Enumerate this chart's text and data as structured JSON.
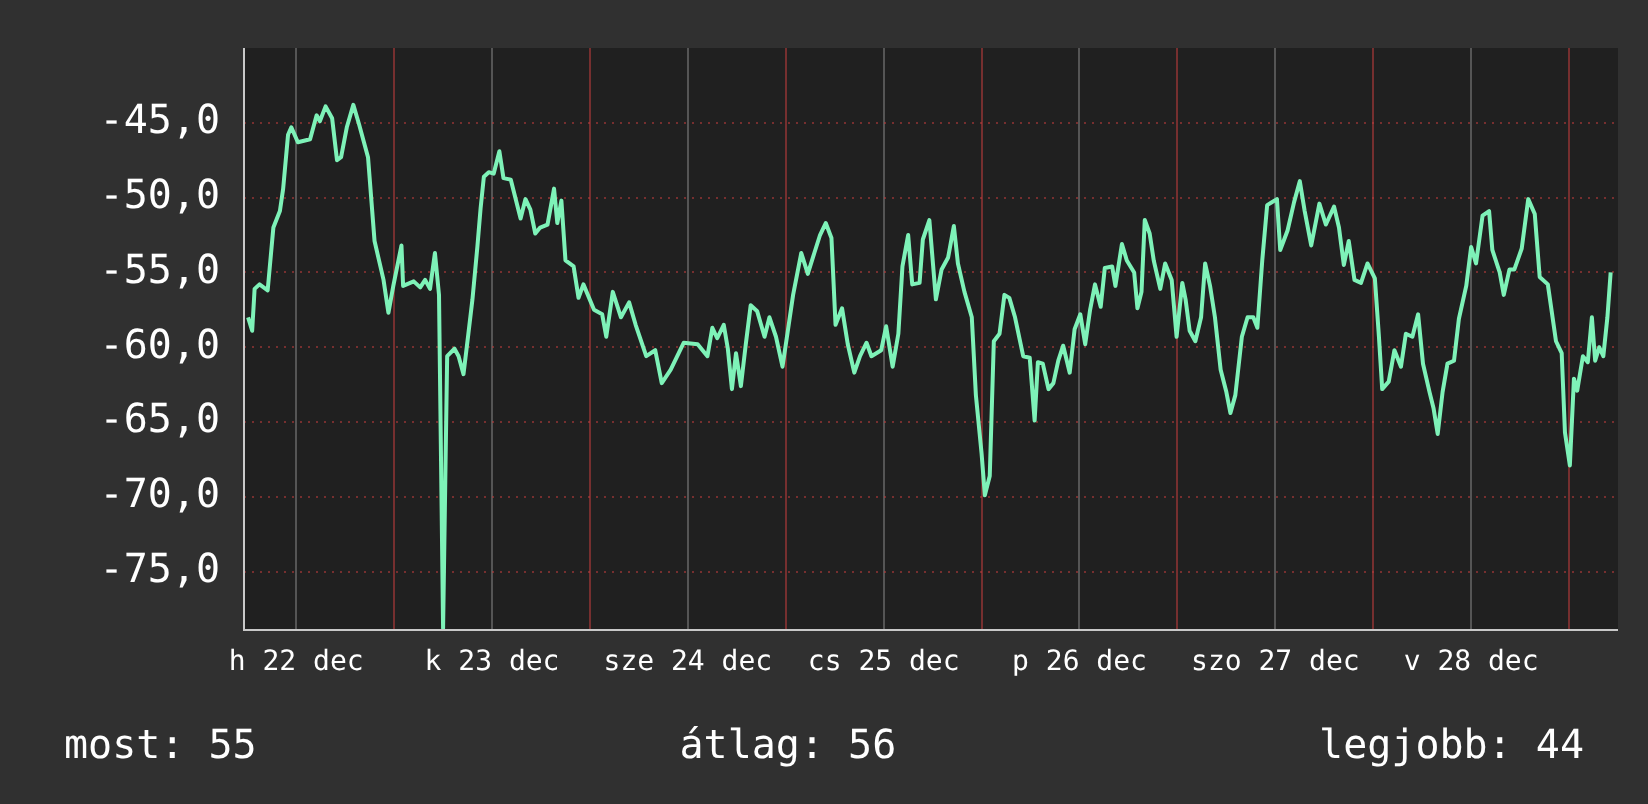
{
  "chart_data": {
    "type": "line",
    "color": "#7ef2b8",
    "grid": true,
    "legend": false,
    "marker": "none",
    "line_style": "solid",
    "xlim": [
      "--12-22T05:36",
      "--12-29T06:00"
    ],
    "ylim": [
      -78.9,
      -40
    ],
    "xticks": [
      {
        "value": "--12-22T12:00",
        "label": "h 22 dec"
      },
      {
        "value": "--12-23T00:00",
        "label": null
      },
      {
        "value": "--12-23T12:00",
        "label": "k 23 dec"
      },
      {
        "value": "--12-24T00:00",
        "label": null
      },
      {
        "value": "--12-24T12:00",
        "label": "sze 24 dec"
      },
      {
        "value": "--12-25T00:00",
        "label": null
      },
      {
        "value": "--12-25T12:00",
        "label": "cs 25 dec"
      },
      {
        "value": "--12-26T00:00",
        "label": null
      },
      {
        "value": "--12-26T12:00",
        "label": "p 26 dec"
      },
      {
        "value": "--12-27T00:00",
        "label": null
      },
      {
        "value": "--12-27T12:00",
        "label": "szo 27 dec"
      },
      {
        "value": "--12-28T00:00",
        "label": null
      },
      {
        "value": "--12-28T12:00",
        "label": "v 28 dec"
      },
      {
        "value": "--12-29T00:00",
        "label": null
      }
    ],
    "yticks": [
      {
        "value": -75,
        "label": "-75,0"
      },
      {
        "value": -70,
        "label": "-70,0"
      },
      {
        "value": -65,
        "label": "-65,0"
      },
      {
        "value": -60,
        "label": "-60,0"
      },
      {
        "value": -55,
        "label": "-55,0"
      },
      {
        "value": -50,
        "label": "-50,0"
      },
      {
        "value": -45,
        "label": "-45,0"
      }
    ],
    "annotations": [
      "most: 55",
      "átlag: 56",
      "legjobb: 44"
    ],
    "x": [
      "--12-22T06:06",
      "--12-22T06:36",
      "--12-22T06:54",
      "--12-22T07:30",
      "--12-22T08:30",
      "--12-22T09:12",
      "--12-22T10:00",
      "--12-22T10:24",
      "--12-22T11:00",
      "--12-22T11:24",
      "--12-22T12:12",
      "--12-22T13:42",
      "--12-22T14:30",
      "--12-22T14:54",
      "--12-22T15:36",
      "--12-22T16:24",
      "--12-22T17:00",
      "--12-22T17:30",
      "--12-22T18:12",
      "--12-22T19:00",
      "--12-22T19:42",
      "--12-22T20:48",
      "--12-22T21:36",
      "--12-22T22:42",
      "--12-22T23:18",
      "--12-22T23:54",
      "--12-23T00:54",
      "--12-23T01:06",
      "--12-23T02:24",
      "--12-23T03:12",
      "--12-23T03:48",
      "--12-23T04:24",
      "--12-23T05:00",
      "--12-23T05:30",
      "--12-23T06:00",
      "--12-23T06:30",
      "--12-23T07:24",
      "--12-23T07:54",
      "--12-23T08:30",
      "--12-23T09:06",
      "--12-23T09:36",
      "--12-23T10:12",
      "--12-23T10:36",
      "--12-23T11:00",
      "--12-23T11:36",
      "--12-23T12:12",
      "--12-23T12:54",
      "--12-23T13:24",
      "--12-23T14:18",
      "--12-23T15:30",
      "--12-23T16:06",
      "--12-23T16:42",
      "--12-23T17:18",
      "--12-23T17:54",
      "--12-23T18:48",
      "--12-23T19:36",
      "--12-23T20:00",
      "--12-23T20:30",
      "--12-23T21:00",
      "--12-23T22:00",
      "--12-23T22:36",
      "--12-23T23:12",
      "--12-24T00:30",
      "--12-24T01:30",
      "--12-24T02:00",
      "--12-24T02:48",
      "--12-24T03:48",
      "--12-24T04:48",
      "--12-24T05:36",
      "--12-24T06:54",
      "--12-24T08:00",
      "--12-24T08:48",
      "--12-24T09:54",
      "--12-24T11:30",
      "--12-24T13:12",
      "--12-24T14:24",
      "--12-24T15:00",
      "--12-24T15:36",
      "--12-24T16:24",
      "--12-24T16:54",
      "--12-24T17:24",
      "--12-24T17:54",
      "--12-24T18:30",
      "--12-24T19:06",
      "--12-24T19:42",
      "--12-24T20:30",
      "--12-24T21:24",
      "--12-24T22:00",
      "--12-24T22:48",
      "--12-24T23:36",
      "--12-25T00:12",
      "--12-25T00:54",
      "--12-25T01:54",
      "--12-25T02:42",
      "--12-25T03:30",
      "--12-25T04:12",
      "--12-25T04:54",
      "--12-25T05:36",
      "--12-25T06:06",
      "--12-25T06:54",
      "--12-25T07:36",
      "--12-25T08:24",
      "--12-25T09:06",
      "--12-25T09:54",
      "--12-25T10:30",
      "--12-25T11:42",
      "--12-25T12:18",
      "--12-25T13:06",
      "--12-25T13:48",
      "--12-25T14:18",
      "--12-25T15:00",
      "--12-25T15:30",
      "--12-25T16:24",
      "--12-25T16:48",
      "--12-25T17:36",
      "--12-25T18:24",
      "--12-25T19:06",
      "--12-25T19:54",
      "--12-25T20:36",
      "--12-25T21:06",
      "--12-25T21:54",
      "--12-25T22:48",
      "--12-25T23:18",
      "--12-26T00:00",
      "--12-26T00:24",
      "--12-26T01:00",
      "--12-26T01:30",
      "--12-26T02:12",
      "--12-26T02:48",
      "--12-26T03:24",
      "--12-26T04:06",
      "--12-26T05:06",
      "--12-26T05:54",
      "--12-26T06:30",
      "--12-26T06:54",
      "--12-26T07:30",
      "--12-26T08:12",
      "--12-26T08:48",
      "--12-26T09:24",
      "--12-26T10:00",
      "--12-26T10:48",
      "--12-26T11:24",
      "--12-26T12:06",
      "--12-26T12:42",
      "--12-26T13:18",
      "--12-26T13:54",
      "--12-26T14:36",
      "--12-26T15:06",
      "--12-26T16:00",
      "--12-26T16:24",
      "--12-26T17:12",
      "--12-26T17:48",
      "--12-26T18:42",
      "--12-26T19:06",
      "--12-26T19:36",
      "--12-26T20:00",
      "--12-26T20:36",
      "--12-26T21:06",
      "--12-26T21:54",
      "--12-26T22:30",
      "--12-26T23:18",
      "--12-26T23:54",
      "--12-27T00:36",
      "--12-27T01:00",
      "--12-27T01:30",
      "--12-27T02:12",
      "--12-27T02:54",
      "--12-27T03:24",
      "--12-27T04:00",
      "--12-27T04:36",
      "--12-27T05:18",
      "--12-27T06:00",
      "--12-27T06:30",
      "--12-27T07:06",
      "--12-27T07:54",
      "--12-27T08:36",
      "--12-27T09:18",
      "--12-27T09:48",
      "--12-27T10:24",
      "--12-27T11:00",
      "--12-27T12:12",
      "--12-27T12:36",
      "--12-27T13:30",
      "--12-27T14:18",
      "--12-27T15:00",
      "--12-27T15:36",
      "--12-27T16:24",
      "--12-27T16:54",
      "--12-27T17:24",
      "--12-27T18:12",
      "--12-27T19:12",
      "--12-27T19:48",
      "--12-27T20:24",
      "--12-27T21:00",
      "--12-27T21:42",
      "--12-27T22:30",
      "--12-27T23:18",
      "--12-28T00:12",
      "--12-28T00:42",
      "--12-28T01:06",
      "--12-28T01:54",
      "--12-28T02:36",
      "--12-28T03:24",
      "--12-28T04:00",
      "--12-28T04:48",
      "--12-28T05:30",
      "--12-28T06:06",
      "--12-28T06:54",
      "--12-28T07:24",
      "--12-28T07:54",
      "--12-28T08:30",
      "--12-28T09:06",
      "--12-28T09:54",
      "--12-28T10:30",
      "--12-28T11:24",
      "--12-28T12:00",
      "--12-28T12:36",
      "--12-28T13:24",
      "--12-28T14:12",
      "--12-28T14:36",
      "--12-28T15:30",
      "--12-28T16:00",
      "--12-28T16:42",
      "--12-28T17:18",
      "--12-28T18:12",
      "--12-28T19:00",
      "--12-28T19:48",
      "--12-28T20:24",
      "--12-28T21:24",
      "--12-28T22:24",
      "--12-28T23:06",
      "--12-28T23:30",
      "--12-29T00:06",
      "--12-29T00:36",
      "--12-29T01:00",
      "--12-29T01:42",
      "--12-29T02:18",
      "--12-29T02:48",
      "--12-29T03:12",
      "--12-29T03:42",
      "--12-29T04:12",
      "--12-29T04:42",
      "--12-29T05:06"
    ],
    "values": [
      -58.0,
      -58.9,
      -56.1,
      -55.8,
      -56.2,
      -52.0,
      -50.9,
      -49.4,
      -45.8,
      -45.3,
      -46.3,
      -46.1,
      -44.5,
      -44.9,
      -43.9,
      -44.7,
      -47.5,
      -47.3,
      -45.3,
      -43.8,
      -45.1,
      -47.3,
      -52.9,
      -55.5,
      -57.7,
      -55.9,
      -53.2,
      -55.9,
      -55.6,
      -56.0,
      -55.5,
      -56.1,
      -53.7,
      -56.5,
      -78.8,
      -60.6,
      -60.1,
      -60.6,
      -61.8,
      -59.1,
      -56.8,
      -53.3,
      -50.7,
      -48.6,
      -48.3,
      -48.4,
      -46.9,
      -48.7,
      -48.8,
      -51.4,
      -50.1,
      -50.8,
      -52.4,
      -52.0,
      -51.8,
      -49.4,
      -51.7,
      -50.2,
      -54.2,
      -54.6,
      -56.7,
      -55.8,
      -57.5,
      -57.8,
      -59.3,
      -56.3,
      -58.0,
      -57.0,
      -58.5,
      -60.6,
      -60.2,
      -62.4,
      -61.5,
      -59.7,
      -59.8,
      -60.6,
      -58.7,
      -59.4,
      -58.5,
      -60.1,
      -62.8,
      -60.4,
      -62.6,
      -59.8,
      -57.2,
      -57.6,
      -59.3,
      -58.0,
      -59.3,
      -61.3,
      -59.1,
      -56.5,
      -53.7,
      -55.1,
      -53.7,
      -52.5,
      -51.7,
      -52.7,
      -58.5,
      -57.4,
      -59.8,
      -61.7,
      -60.6,
      -59.7,
      -60.6,
      -60.2,
      -58.6,
      -61.3,
      -59.1,
      -54.6,
      -52.5,
      -55.8,
      -55.7,
      -52.8,
      -51.5,
      -56.8,
      -54.8,
      -54.0,
      -51.9,
      -54.4,
      -56.3,
      -58.0,
      -63.2,
      -67.1,
      -69.9,
      -68.6,
      -59.6,
      -59.1,
      -56.5,
      -56.7,
      -58.0,
      -60.6,
      -60.7,
      -64.9,
      -61.0,
      -61.1,
      -62.8,
      -62.4,
      -60.9,
      -59.9,
      -61.7,
      -58.8,
      -57.8,
      -59.8,
      -57.5,
      -55.8,
      -57.3,
      -54.7,
      -54.6,
      -55.9,
      -53.1,
      -54.2,
      -55.0,
      -57.4,
      -56.3,
      -51.5,
      -52.4,
      -54.2,
      -56.1,
      -54.4,
      -55.5,
      -59.3,
      -55.7,
      -56.8,
      -58.9,
      -59.6,
      -58.0,
      -54.4,
      -55.9,
      -58.0,
      -61.5,
      -63.0,
      -64.4,
      -63.2,
      -59.3,
      -58.0,
      -58.0,
      -58.7,
      -54.2,
      -50.5,
      -50.1,
      -53.5,
      -52.2,
      -50.3,
      -48.9,
      -50.9,
      -53.2,
      -51.8,
      -50.4,
      -51.8,
      -50.6,
      -52.0,
      -54.5,
      -52.9,
      -55.5,
      -55.7,
      -54.4,
      -55.4,
      -59.3,
      -62.8,
      -62.3,
      -60.2,
      -61.3,
      -59.1,
      -59.3,
      -57.8,
      -61.1,
      -63.0,
      -64.1,
      -65.8,
      -63.0,
      -61.1,
      -60.9,
      -58.1,
      -55.9,
      -53.3,
      -54.4,
      -51.2,
      -50.9,
      -53.5,
      -55.0,
      -56.5,
      -54.8,
      -54.8,
      -53.4,
      -50.1,
      -51.1,
      -55.3,
      -55.8,
      -59.6,
      -60.4,
      -65.7,
      -67.9,
      -62.1,
      -62.9,
      -60.6,
      -61.0,
      -58.0,
      -60.9,
      -60.0,
      -60.6,
      -58.0,
      -55.0
    ]
  }
}
